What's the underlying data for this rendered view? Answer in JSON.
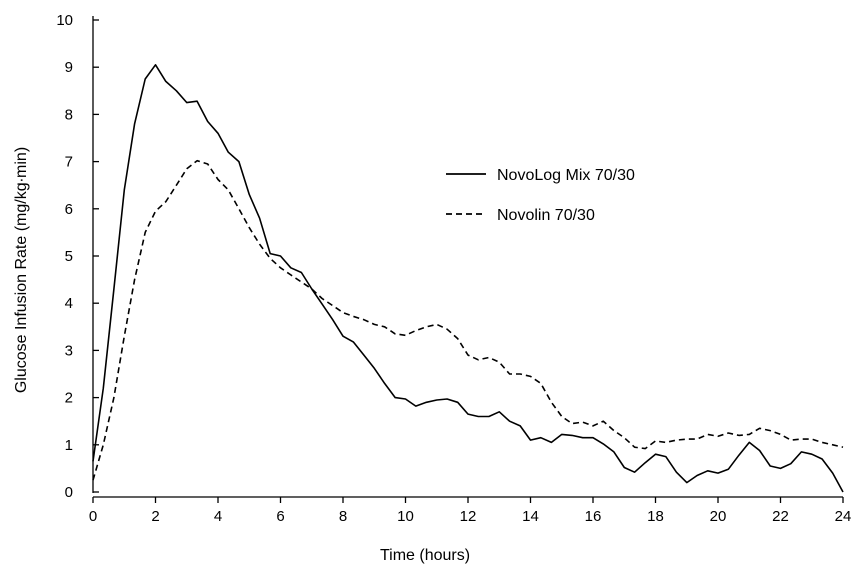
{
  "chart_data": {
    "type": "line",
    "xlabel": "Time (hours)",
    "ylabel": "Glucose Infusion Rate (mg/kg∙min)",
    "xlim": [
      0,
      24
    ],
    "ylim": [
      0,
      10
    ],
    "x_ticks": [
      0,
      2,
      4,
      6,
      8,
      10,
      12,
      14,
      16,
      18,
      20,
      22,
      24
    ],
    "y_ticks": [
      0,
      1,
      2,
      3,
      4,
      5,
      6,
      7,
      8,
      9,
      10
    ],
    "grid": false,
    "legend_position": "right",
    "series": [
      {
        "name": "NovoLog Mix 70/30",
        "style": "solid",
        "color": "#000000",
        "x": [
          0,
          0.33,
          0.67,
          1.0,
          1.33,
          1.67,
          2.0,
          2.33,
          2.67,
          3.0,
          3.33,
          3.67,
          4.0,
          4.33,
          4.67,
          5.0,
          5.33,
          5.67,
          6.0,
          6.33,
          6.67,
          7.0,
          7.33,
          7.67,
          8.0,
          8.33,
          8.67,
          9.0,
          9.33,
          9.67,
          10.0,
          10.33,
          10.67,
          11.0,
          11.33,
          11.67,
          12.0,
          12.33,
          12.67,
          13.0,
          13.33,
          13.67,
          14.0,
          14.33,
          14.67,
          15.0,
          15.33,
          15.67,
          16.0,
          16.33,
          16.67,
          17.0,
          17.33,
          17.67,
          18.0,
          18.33,
          18.67,
          19.0,
          19.33,
          19.67,
          20.0,
          20.33,
          20.67,
          21.0,
          21.33,
          21.67,
          22.0,
          22.33,
          22.67,
          23.0,
          23.33,
          23.67,
          24.0
        ],
        "y": [
          0.65,
          2.2,
          4.3,
          6.4,
          7.8,
          8.75,
          9.05,
          8.7,
          8.5,
          8.25,
          8.28,
          7.85,
          7.6,
          7.2,
          7.0,
          6.3,
          5.8,
          5.05,
          5.0,
          4.75,
          4.65,
          4.3,
          3.98,
          3.65,
          3.3,
          3.18,
          2.9,
          2.62,
          2.3,
          2.0,
          1.97,
          1.82,
          1.9,
          1.95,
          1.97,
          1.9,
          1.65,
          1.6,
          1.6,
          1.7,
          1.5,
          1.4,
          1.1,
          1.15,
          1.05,
          1.22,
          1.2,
          1.15,
          1.15,
          1.02,
          0.85,
          0.52,
          0.42,
          0.62,
          0.8,
          0.75,
          0.42,
          0.2,
          0.35,
          0.45,
          0.4,
          0.48,
          0.78,
          1.05,
          0.88,
          0.55,
          0.5,
          0.6,
          0.85,
          0.8,
          0.7,
          0.4,
          0.0
        ]
      },
      {
        "name": "Novolin 70/30",
        "style": "dashed",
        "color": "#000000",
        "x": [
          0,
          0.33,
          0.67,
          1.0,
          1.33,
          1.67,
          2.0,
          2.33,
          2.67,
          3.0,
          3.33,
          3.67,
          4.0,
          4.33,
          4.67,
          5.0,
          5.33,
          5.67,
          6.0,
          6.33,
          6.67,
          7.0,
          7.33,
          7.67,
          8.0,
          8.33,
          8.67,
          9.0,
          9.33,
          9.67,
          10.0,
          10.33,
          10.67,
          11.0,
          11.33,
          11.67,
          12.0,
          12.33,
          12.67,
          13.0,
          13.33,
          13.67,
          14.0,
          14.33,
          14.67,
          15.0,
          15.33,
          15.67,
          16.0,
          16.33,
          16.67,
          17.0,
          17.33,
          17.67,
          18.0,
          18.33,
          18.67,
          19.0,
          19.33,
          19.67,
          20.0,
          20.33,
          20.67,
          21.0,
          21.33,
          21.67,
          22.0,
          22.33,
          22.67,
          23.0,
          23.33,
          23.67,
          24.0
        ],
        "y": [
          0.25,
          1.0,
          2.0,
          3.3,
          4.5,
          5.5,
          5.95,
          6.15,
          6.5,
          6.85,
          7.02,
          6.95,
          6.62,
          6.4,
          6.0,
          5.6,
          5.25,
          4.95,
          4.75,
          4.6,
          4.45,
          4.3,
          4.1,
          3.95,
          3.8,
          3.72,
          3.65,
          3.55,
          3.5,
          3.35,
          3.32,
          3.42,
          3.5,
          3.55,
          3.45,
          3.25,
          2.9,
          2.8,
          2.85,
          2.75,
          2.5,
          2.5,
          2.45,
          2.3,
          1.9,
          1.6,
          1.45,
          1.48,
          1.4,
          1.5,
          1.3,
          1.15,
          0.95,
          0.92,
          1.08,
          1.05,
          1.1,
          1.12,
          1.12,
          1.22,
          1.18,
          1.25,
          1.2,
          1.22,
          1.35,
          1.3,
          1.22,
          1.1,
          1.12,
          1.12,
          1.05,
          1.0,
          0.95
        ]
      }
    ]
  }
}
